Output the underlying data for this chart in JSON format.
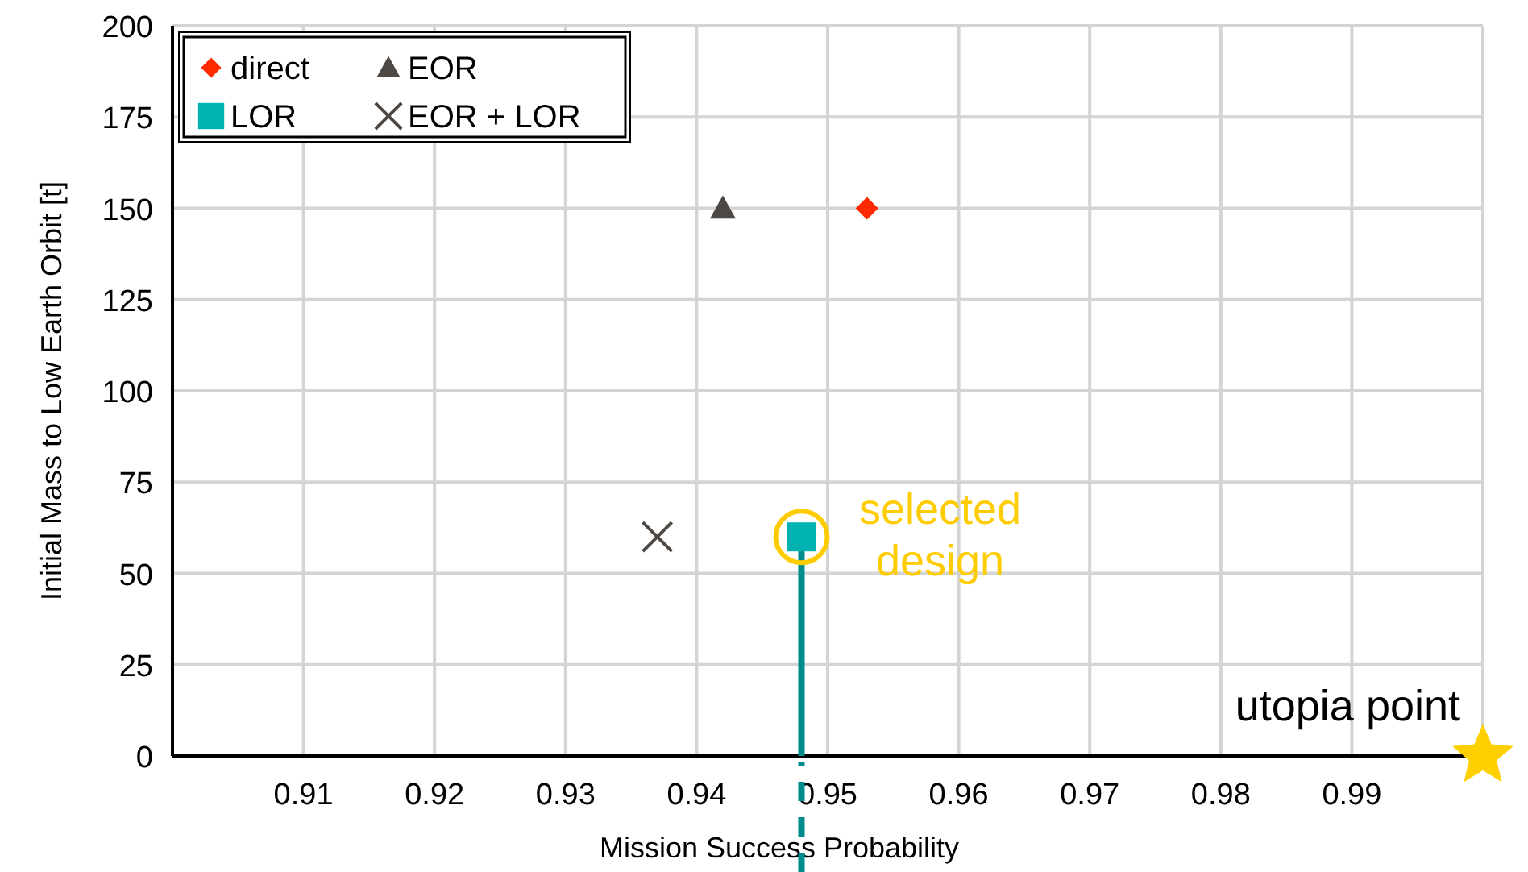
{
  "chart_data": {
    "type": "scatter",
    "xlabel": "Mission Success Probability",
    "ylabel": "Initial Mass to Low Earth Orbit [t]",
    "xlim": [
      0.9,
      1.0
    ],
    "xticks": [
      0.91,
      0.92,
      0.93,
      0.94,
      0.95,
      0.96,
      0.97,
      0.98,
      0.99
    ],
    "ylim": [
      0,
      200
    ],
    "yticks": [
      0,
      25,
      50,
      75,
      100,
      125,
      150,
      175,
      200
    ],
    "grid": true,
    "legend": "top left",
    "series": [
      {
        "name": "direct",
        "color": "#ff2a00",
        "marker": "diamond",
        "x": [
          0.953
        ],
        "values": [
          150
        ]
      },
      {
        "name": "EOR",
        "color": "#4d4844",
        "marker": "triangle",
        "x": [
          0.942
        ],
        "values": [
          150
        ]
      },
      {
        "name": "LOR",
        "color": "#00b3b0",
        "marker": "square",
        "x": [
          0.948
        ],
        "values": [
          60
        ]
      },
      {
        "name": "EOR + LOR",
        "color": "#4d4844",
        "marker": "cross",
        "x": [
          0.937
        ],
        "values": [
          60
        ]
      },
      {
        "type": "line",
        "color": "#008c8c",
        "x": [
          0.948,
          0.948
        ],
        "values": [
          0,
          60
        ]
      },
      {
        "color": "#ffd000",
        "marker": "star",
        "x": [
          1.0
        ],
        "values": [
          0
        ]
      }
    ],
    "annotations": [
      {
        "text": "selected design",
        "x": 0.948,
        "y": 60
      },
      {
        "text": "utopia point",
        "x": 1.0,
        "y": 0
      }
    ]
  }
}
